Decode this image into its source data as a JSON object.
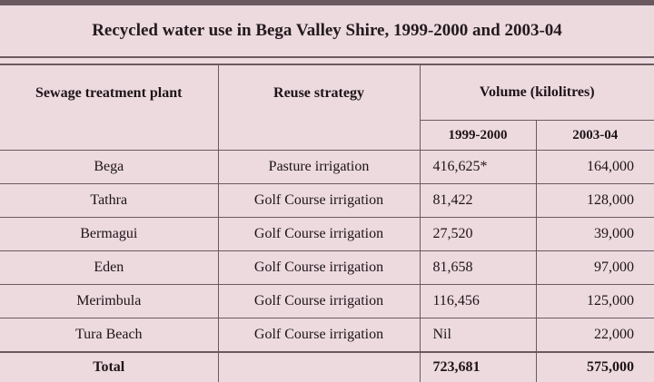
{
  "title": "Recycled water use in Bega Valley Shire, 1999-2000 and 2003-04",
  "headers": {
    "plant": "Sewage treatment plant",
    "strategy": "Reuse strategy",
    "volume": "Volume (kilolitres)",
    "y1": "1999-2000",
    "y2": "2003-04"
  },
  "rows": [
    {
      "plant": "Bega",
      "strategy": "Pasture irrigation",
      "v1": "416,625*",
      "v2": "164,000"
    },
    {
      "plant": "Tathra",
      "strategy": "Golf Course irrigation",
      "v1": "81,422",
      "v2": "128,000"
    },
    {
      "plant": "Bermagui",
      "strategy": "Golf Course irrigation",
      "v1": "27,520",
      "v2": "39,000"
    },
    {
      "plant": "Eden",
      "strategy": "Golf Course irrigation",
      "v1": "81,658",
      "v2": "97,000"
    },
    {
      "plant": "Merimbula",
      "strategy": "Golf Course irrigation",
      "v1": "116,456",
      "v2": "125,000"
    },
    {
      "plant": "Tura Beach",
      "strategy": "Golf Course irrigation",
      "v1": "Nil",
      "v2": "22,000"
    }
  ],
  "total": {
    "label": "Total",
    "strategy": "",
    "v1": "723,681",
    "v2": "575,000"
  }
}
